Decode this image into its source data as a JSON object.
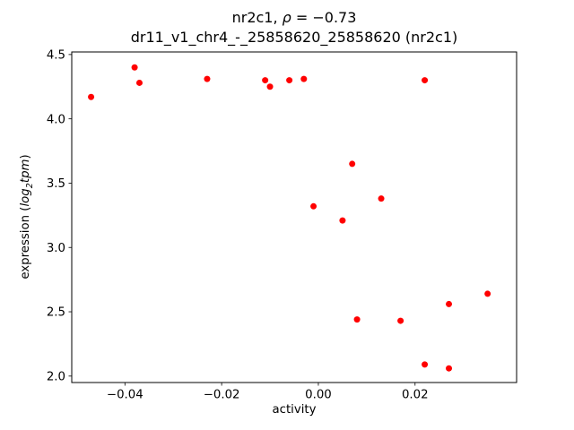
{
  "chart_data": {
    "type": "scatter",
    "title_line1": {
      "prefix": "nr2c1, ",
      "rho": "ρ",
      "suffix": " = −0.73"
    },
    "title_line2": "dr11_v1_chr4_-_25858620_25858620 (nr2c1)",
    "xlabel": "activity",
    "ylabel": {
      "prefix": "expression (",
      "math_log": "log",
      "math_sub": "2",
      "math_tpm": "tpm",
      "suffix": ")"
    },
    "xlim": [
      -0.051,
      0.041
    ],
    "ylim": [
      1.95,
      4.52
    ],
    "grid": false,
    "legend": "none",
    "marker": "circle",
    "marker_color": "#ff0000",
    "xticks": [
      {
        "value": -0.04,
        "label": "−0.04"
      },
      {
        "value": -0.02,
        "label": "−0.02"
      },
      {
        "value": 0.0,
        "label": "0.00"
      },
      {
        "value": 0.02,
        "label": "0.02"
      }
    ],
    "yticks": [
      {
        "value": 2.0,
        "label": "2.0"
      },
      {
        "value": 2.5,
        "label": "2.5"
      },
      {
        "value": 3.0,
        "label": "3.0"
      },
      {
        "value": 3.5,
        "label": "3.5"
      },
      {
        "value": 4.0,
        "label": "4.0"
      },
      {
        "value": 4.5,
        "label": "4.5"
      }
    ],
    "points": [
      [
        -0.047,
        4.17
      ],
      [
        -0.038,
        4.4
      ],
      [
        -0.037,
        4.28
      ],
      [
        -0.023,
        4.31
      ],
      [
        -0.011,
        4.3
      ],
      [
        -0.01,
        4.25
      ],
      [
        -0.006,
        4.3
      ],
      [
        -0.003,
        4.31
      ],
      [
        -0.001,
        3.32
      ],
      [
        0.005,
        3.21
      ],
      [
        0.007,
        3.65
      ],
      [
        0.008,
        2.44
      ],
      [
        0.013,
        3.38
      ],
      [
        0.017,
        2.43
      ],
      [
        0.022,
        2.09
      ],
      [
        0.022,
        4.3
      ],
      [
        0.027,
        2.06
      ],
      [
        0.027,
        2.56
      ],
      [
        0.035,
        2.64
      ]
    ]
  }
}
